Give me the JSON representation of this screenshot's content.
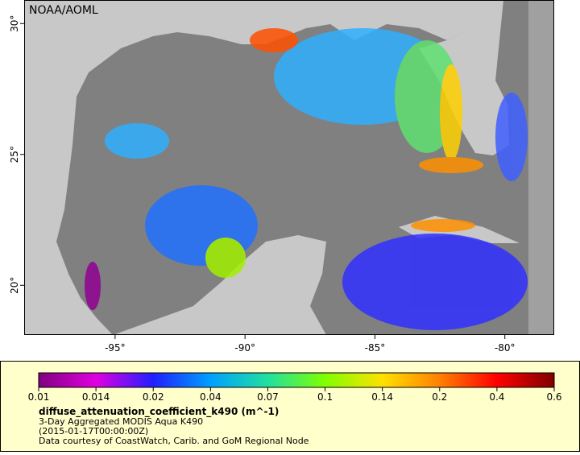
{
  "map": {
    "title": "NOAA/AOML",
    "xlim": [
      -98.5,
      -78.1
    ],
    "ylim": [
      18.1,
      30.9
    ],
    "xticks": [
      {
        "value": -95,
        "label": "-95°"
      },
      {
        "value": -90,
        "label": "-90°"
      },
      {
        "value": -85,
        "label": "-85°"
      },
      {
        "value": -80,
        "label": "-80°"
      }
    ],
    "yticks": [
      {
        "value": 20,
        "label": "20°"
      },
      {
        "value": 25,
        "label": "25°"
      },
      {
        "value": 30,
        "label": "30°"
      }
    ]
  },
  "colorbar": {
    "ticks": [
      0.01,
      0.014,
      0.02,
      0.04,
      0.07,
      0.1,
      0.14,
      0.2,
      0.4,
      0.6
    ],
    "colors": [
      "#800080",
      "#e000e0",
      "#2020ff",
      "#00a0ff",
      "#20e0a0",
      "#80ff00",
      "#ffe000",
      "#ff8000",
      "#ff0000",
      "#800000"
    ],
    "variable": "diffuse_attenuation_coefficient_k490 (m^-1)",
    "description": "3-Day Aggregated MODIS Aqua K490",
    "time": "(2015-01-17T00:00:00Z)",
    "credit": "Data courtesy of CoastWatch, Carib. and GoM Regional Node"
  }
}
